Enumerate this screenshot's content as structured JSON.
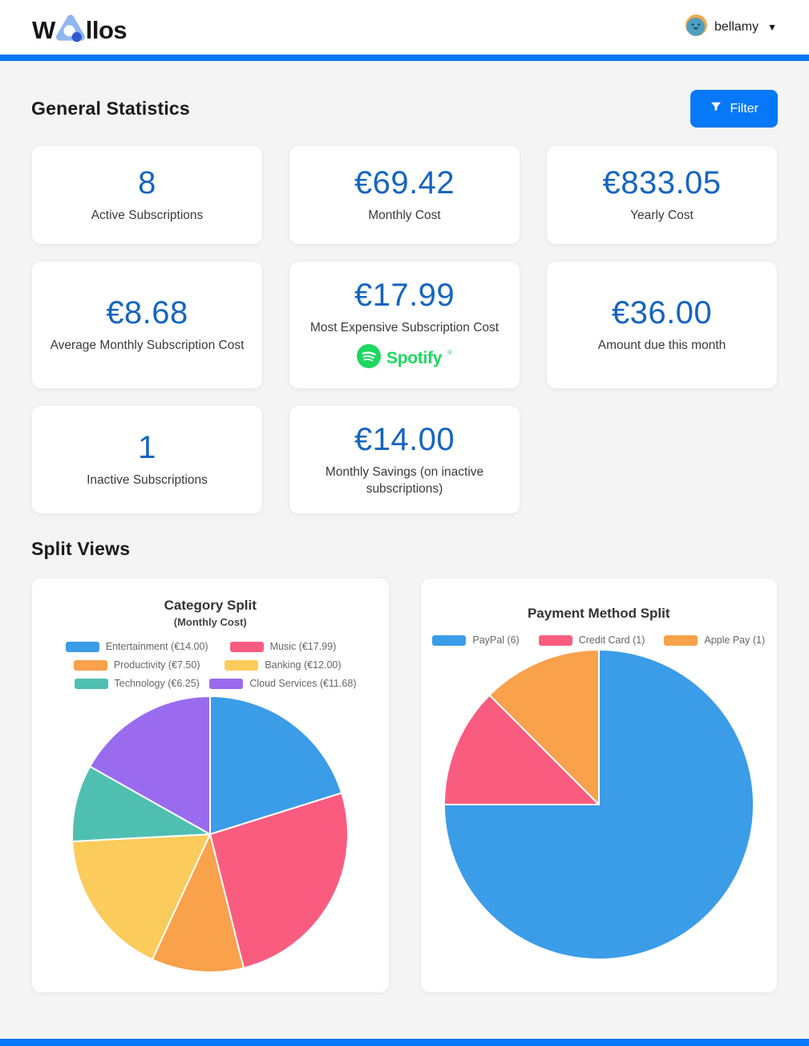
{
  "header": {
    "logo_prefix": "W",
    "logo_suffix": "llos",
    "user_name": "bellamy",
    "menu_arrow": "▼"
  },
  "colors": {
    "accent_blue": "#0778F8",
    "stat_value_blue": "#1565C0",
    "spotify_green": "#1ED760",
    "page_background": "#F4F4F4"
  },
  "stats": {
    "title": "General Statistics",
    "filter_label": "Filter",
    "cards": [
      {
        "value": "8",
        "label": "Active Subscriptions"
      },
      {
        "value": "€69.42",
        "label": "Monthly Cost"
      },
      {
        "value": "€833.05",
        "label": "Yearly Cost"
      },
      {
        "value": "€8.68",
        "label": "Average Monthly Subscription Cost"
      },
      {
        "value": "€17.99",
        "label": "Most Expensive Subscription Cost",
        "brand": "Spotify",
        "brand_mark": "®"
      },
      {
        "value": "€36.00",
        "label": "Amount due this month"
      },
      {
        "value": "1",
        "label": "Inactive Subscriptions"
      },
      {
        "value": "€14.00",
        "label": "Monthly Savings (on inactive subscriptions)"
      }
    ]
  },
  "split_views": {
    "title": "Split Views"
  },
  "chart_data": [
    {
      "type": "pie",
      "title": "Category Split",
      "subtitle": "(Monthly Cost)",
      "categories": [
        "Entertainment",
        "Music",
        "Productivity",
        "Banking",
        "Technology",
        "Cloud Services"
      ],
      "values": [
        14.0,
        17.99,
        7.5,
        12.0,
        6.25,
        11.68
      ],
      "legend_labels": [
        "Entertainment (€14.00)",
        "Music (€17.99)",
        "Productivity (€7.50)",
        "Banking (€12.00)",
        "Technology (€6.25)",
        "Cloud Services (€11.68)"
      ],
      "colors": [
        "#3B9CE8",
        "#FA5C80",
        "#F9A14B",
        "#FBCB5B",
        "#4FBFB2",
        "#9A6BEE"
      ],
      "total": 69.42,
      "currency": "€",
      "legend_position": "top",
      "start_angle_deg": 0,
      "direction": "clockwise"
    },
    {
      "type": "pie",
      "title": "Payment Method Split",
      "categories": [
        "PayPal",
        "Credit Card",
        "Apple Pay"
      ],
      "values": [
        6,
        1,
        1
      ],
      "legend_labels": [
        "PayPal (6)",
        "Credit Card (1)",
        "Apple Pay (1)"
      ],
      "colors": [
        "#3B9CE8",
        "#FA5C80",
        "#F9A14B"
      ],
      "total": 8,
      "legend_position": "top",
      "start_angle_deg": 0,
      "direction": "clockwise"
    }
  ]
}
